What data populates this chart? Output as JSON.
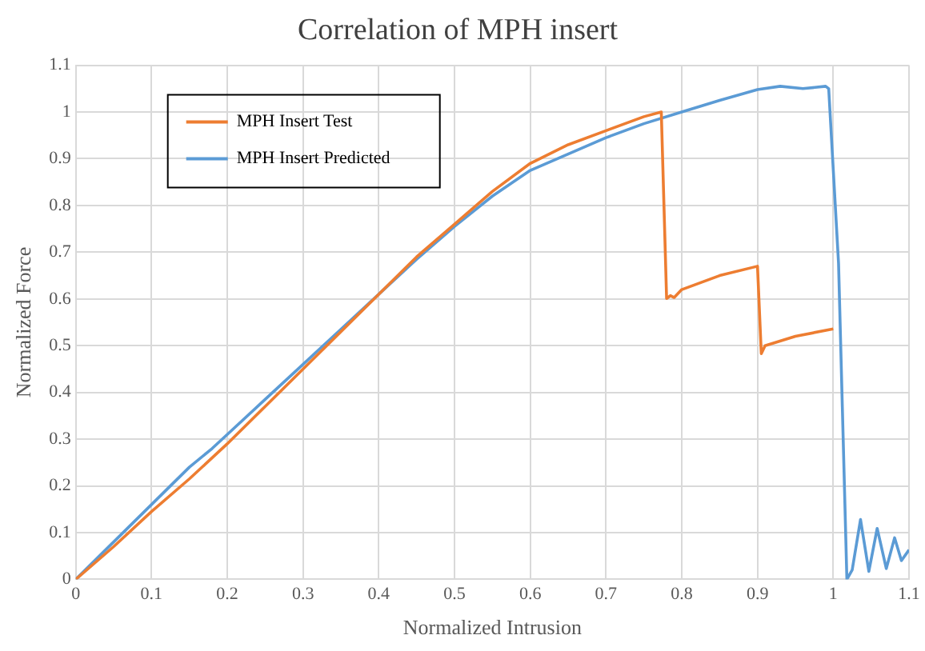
{
  "chart_data": {
    "type": "line",
    "title": "Correlation of MPH insert",
    "xlabel": "Normalized Intrusion",
    "ylabel": "Normalized Force",
    "xlim": [
      0,
      1.1
    ],
    "xticks": [
      0,
      0.1,
      0.2,
      0.3,
      0.4,
      0.5,
      0.6,
      0.7,
      0.8,
      0.9,
      1,
      1.1
    ],
    "ylim": [
      0,
      1.1
    ],
    "yticks": [
      0,
      0.1,
      0.2,
      0.3,
      0.4,
      0.5,
      0.6,
      0.7,
      0.8,
      0.9,
      1,
      1.1
    ],
    "grid": true,
    "legend": "top left",
    "marker": "none",
    "line_style": "solid",
    "series": [
      {
        "name": "MPH Insert Test",
        "color": "#ed7d31",
        "x": [
          0,
          0.05,
          0.1,
          0.15,
          0.2,
          0.25,
          0.3,
          0.35,
          0.4,
          0.45,
          0.5,
          0.55,
          0.6,
          0.65,
          0.7,
          0.75,
          0.773,
          0.78,
          0.785,
          0.79,
          0.8,
          0.85,
          0.9,
          0.905,
          0.91,
          0.95,
          1.0
        ],
        "values": [
          0,
          0.07,
          0.145,
          0.215,
          0.29,
          0.37,
          0.45,
          0.53,
          0.61,
          0.69,
          0.76,
          0.83,
          0.89,
          0.93,
          0.96,
          0.99,
          1.0,
          0.601,
          0.607,
          0.603,
          0.62,
          0.65,
          0.67,
          0.483,
          0.5,
          0.52,
          0.536
        ]
      },
      {
        "name": "MPH Insert Predicted",
        "color": "#5b9bd5",
        "x": [
          0,
          0.05,
          0.1,
          0.15,
          0.18,
          0.2,
          0.25,
          0.3,
          0.35,
          0.4,
          0.45,
          0.5,
          0.55,
          0.6,
          0.65,
          0.7,
          0.75,
          0.8,
          0.85,
          0.9,
          0.93,
          0.96,
          0.99,
          0.994,
          1.007,
          1.018,
          1.025,
          1.036,
          1.047,
          1.058,
          1.07,
          1.081,
          1.09,
          1.1
        ],
        "values": [
          0,
          0.08,
          0.16,
          0.24,
          0.28,
          0.31,
          0.385,
          0.46,
          0.535,
          0.61,
          0.685,
          0.755,
          0.82,
          0.875,
          0.91,
          0.945,
          0.975,
          1.0,
          1.025,
          1.048,
          1.055,
          1.05,
          1.055,
          1.05,
          0.676,
          0,
          0.02,
          0.128,
          0.017,
          0.109,
          0.023,
          0.089,
          0.04,
          0.063
        ]
      }
    ]
  }
}
